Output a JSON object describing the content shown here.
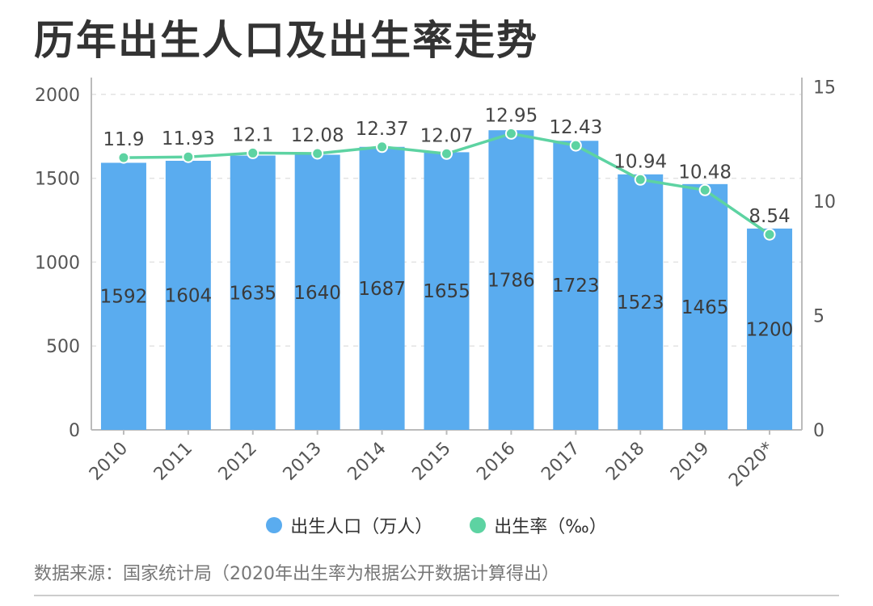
{
  "title": "历年出生人口及出生率走势",
  "legend": {
    "bars_label": "出生人口（万人）",
    "line_label": "出生率（‰）"
  },
  "source": "数据来源：国家统计局（2020年出生率为根据公开数据计算得出）",
  "colors": {
    "bar": "#5aacef",
    "line": "#5dd3a2",
    "axis": "#bbbbbb",
    "grid": "#e3e3e3"
  },
  "chart_data": {
    "type": "bar",
    "categories": [
      "2010",
      "2011",
      "2012",
      "2013",
      "2014",
      "2015",
      "2016",
      "2017",
      "2018",
      "2019",
      "2020*"
    ],
    "series": [
      {
        "name": "出生人口（万人）",
        "type": "bar",
        "axis": "left",
        "values": [
          1592,
          1604,
          1635,
          1640,
          1687,
          1655,
          1786,
          1723,
          1523,
          1465,
          1200
        ]
      },
      {
        "name": "出生率（‰）",
        "type": "line",
        "axis": "right",
        "values": [
          11.9,
          11.93,
          12.1,
          12.08,
          12.37,
          12.07,
          12.95,
          12.43,
          10.94,
          10.48,
          8.54
        ]
      }
    ],
    "left_axis": {
      "ticks": [
        0,
        500,
        1000,
        1500,
        2000
      ],
      "range": [
        0,
        2100
      ]
    },
    "right_axis": {
      "ticks": [
        0,
        5,
        10,
        15
      ],
      "range": [
        0,
        15
      ]
    },
    "grid": true,
    "legend_position": "bottom"
  }
}
